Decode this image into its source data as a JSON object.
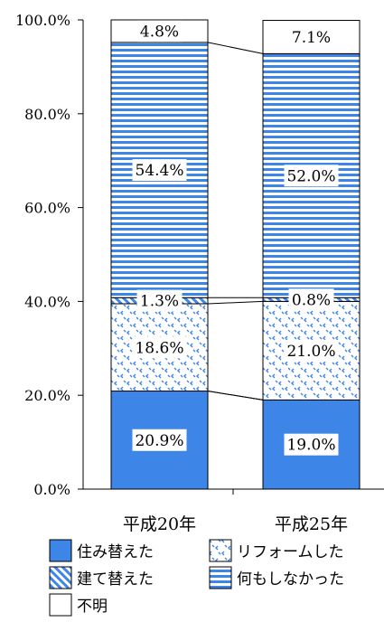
{
  "chart_data": {
    "type": "bar",
    "stacked": true,
    "categories": [
      "平成20年",
      "平成25年"
    ],
    "series": [
      {
        "name": "住み替えた",
        "values": [
          20.9,
          19.0
        ],
        "labels": [
          "20.9%",
          "19.0%"
        ],
        "color": "#3d85e6",
        "pattern": "solid"
      },
      {
        "name": "建て替えた",
        "values": [
          0,
          0
        ],
        "labels": [
          "",
          ""
        ],
        "color": "#3d85e6",
        "pattern": "diagonal"
      },
      {
        "name": "リフォームした",
        "values": [
          18.6,
          21.0
        ],
        "labels": [
          "18.6%",
          "21.0%"
        ],
        "color": "#3d85e6",
        "pattern": "dots"
      },
      {
        "name": "",
        "values": [
          1.3,
          0.8
        ],
        "labels": [
          "1.3%",
          "0.8%"
        ],
        "color": "#3d85e6",
        "pattern": "diagonal"
      },
      {
        "name": "何もしなかった",
        "values": [
          54.4,
          52.0
        ],
        "labels": [
          "54.4%",
          "52.0%"
        ],
        "color": "#3d85e6",
        "pattern": "horizontal"
      },
      {
        "name": "不明",
        "values": [
          4.8,
          7.1
        ],
        "labels": [
          "4.8%",
          "7.1%"
        ],
        "color": "#ffffff",
        "pattern": "none"
      }
    ],
    "yticks": [
      "0.0%",
      "20.0%",
      "40.0%",
      "60.0%",
      "80.0%",
      "100.0%"
    ],
    "ylim": [
      0,
      100
    ],
    "legend": [
      {
        "name": "住み替えた",
        "pattern": "solid"
      },
      {
        "name": "リフォームした",
        "pattern": "dots"
      },
      {
        "name": "建て替えた",
        "pattern": "diagonal"
      },
      {
        "name": "何もしなかった",
        "pattern": "horizontal"
      },
      {
        "name": "不明",
        "pattern": "none"
      }
    ],
    "legend_placement": "bottom",
    "grid": false
  }
}
